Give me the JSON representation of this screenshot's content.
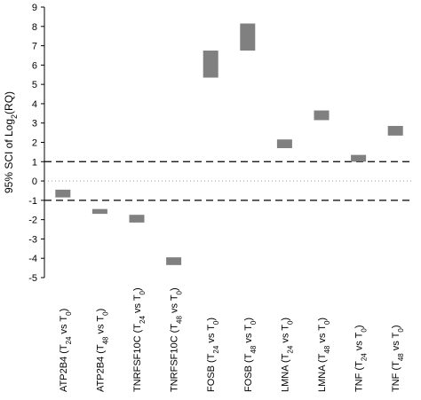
{
  "chart_data": {
    "type": "range-bar",
    "title": "",
    "ylabel": "95% SCI of Log₂(RQ)",
    "ylim": [
      -5,
      9
    ],
    "yticks": [
      -5,
      -4,
      -3,
      -2,
      -1,
      0,
      1,
      2,
      3,
      4,
      5,
      6,
      7,
      8,
      9
    ],
    "grid": false,
    "reference_lines": [
      {
        "y": 1,
        "style": "dashed"
      },
      {
        "y": -1,
        "style": "dashed"
      },
      {
        "y": 0,
        "style": "dotted"
      }
    ],
    "bar_color": "#808080",
    "categories": [
      {
        "gene": "ATP2B4",
        "t": "24",
        "label": "ATP2B4 (T₂₄ vs T₀)",
        "low": -0.85,
        "high": -0.45
      },
      {
        "gene": "ATP2B4",
        "t": "48",
        "label": "ATP2B4 (T₄₈ vs T₀)",
        "low": -1.7,
        "high": -1.45
      },
      {
        "gene": "TNRFSF10C",
        "t": "24",
        "label": "TNRFSF10C (T₂₄ vs T₀)",
        "low": -2.15,
        "high": -1.75
      },
      {
        "gene": "TNRFSF10C",
        "t": "48",
        "label": "TNRFSF10C (T₄₈ vs T₀)",
        "low": -4.35,
        "high": -3.95
      },
      {
        "gene": "FOSB",
        "t": "24",
        "label": "FOSB (T₂₄ vs T₀)",
        "low": 5.35,
        "high": 6.75
      },
      {
        "gene": "FOSB",
        "t": "48",
        "label": "FOSB (T₄₈ vs T₀)",
        "low": 6.75,
        "high": 8.15
      },
      {
        "gene": "LMNA",
        "t": "24",
        "label": "LMNA (T₂₄ vs T₀)",
        "low": 1.7,
        "high": 2.15
      },
      {
        "gene": "LMNA",
        "t": "48",
        "label": "LMNA (T₄₈ vs T₀)",
        "low": 3.15,
        "high": 3.65
      },
      {
        "gene": "TNF",
        "t": "24",
        "label": "TNF (T₂₄ vs T₀)",
        "low": 1.0,
        "high": 1.35
      },
      {
        "gene": "TNF",
        "t": "48",
        "label": "TNF (T₄₈ vs T₀)",
        "low": 2.35,
        "high": 2.85
      }
    ]
  }
}
